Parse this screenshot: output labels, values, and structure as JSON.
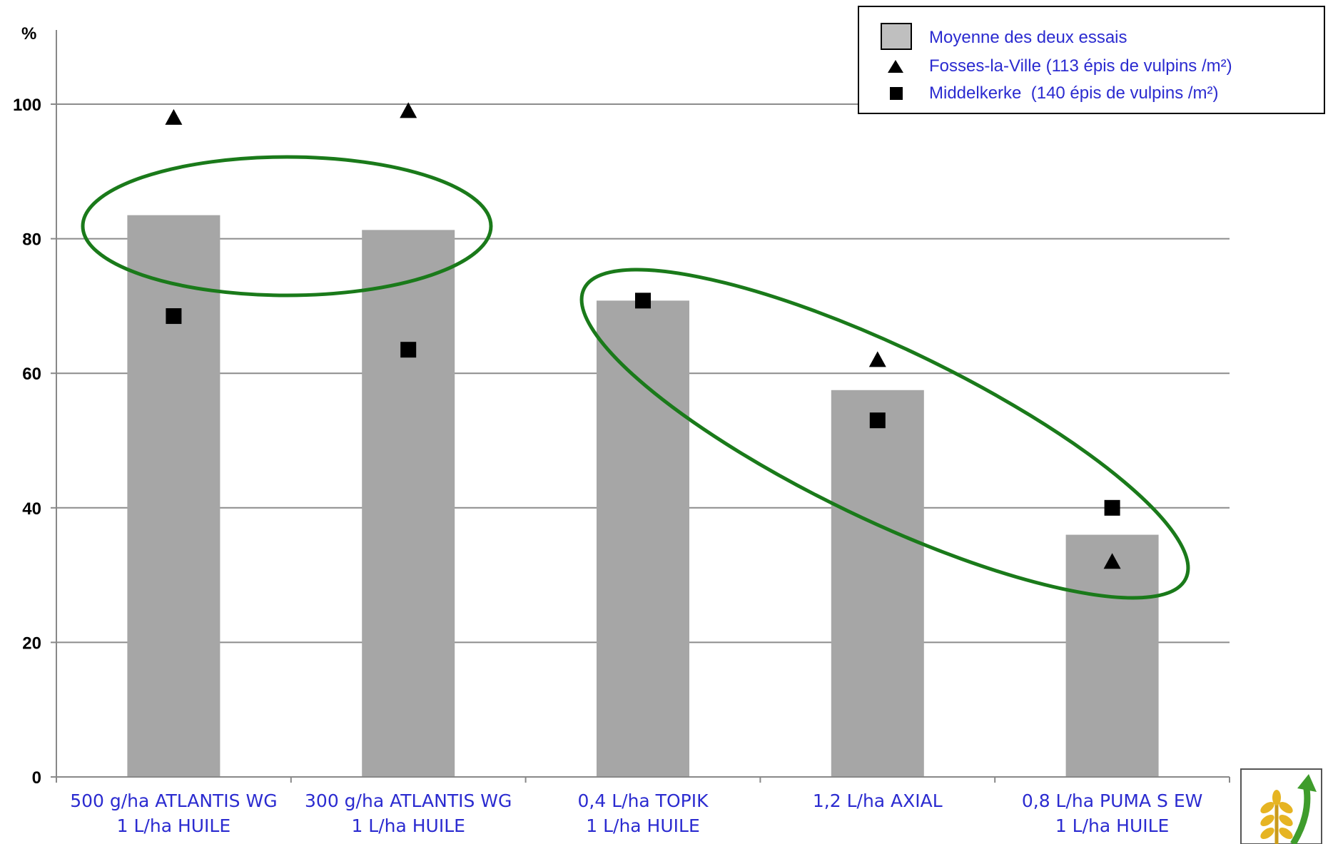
{
  "chart_data": {
    "type": "bar",
    "y_unit_label": "%",
    "ylim": [
      0,
      100
    ],
    "y_ticks": [
      {
        "value": 100,
        "label": "100"
      },
      {
        "value": 80,
        "label": "80"
      },
      {
        "value": 60,
        "label": "60"
      },
      {
        "value": 40,
        "label": "40"
      },
      {
        "value": 20,
        "label": "20"
      },
      {
        "value": 0,
        "label": "0"
      }
    ],
    "gridlines": [
      20,
      40,
      60,
      80,
      100
    ],
    "categories": [
      [
        "500 g/ha ATLANTIS WG",
        "1 L/ha HUILE"
      ],
      [
        "300 g/ha ATLANTIS WG",
        "1 L/ha HUILE"
      ],
      [
        "0,4 L/ha TOPIK",
        "1 L/ha HUILE"
      ],
      [
        "1,2 L/ha AXIAL"
      ],
      [
        "0,8 L/ha PUMA S EW",
        "1 L/ha HUILE"
      ]
    ],
    "series": [
      {
        "name": "Moyenne des deux essais",
        "kind": "bar",
        "color": "#a6a6a6",
        "values": [
          83.5,
          81.3,
          70.8,
          57.5,
          36
        ]
      },
      {
        "name": "Fosses-la-Ville (113 épis de vulpins /m²)",
        "kind": "triangle",
        "color": "#000000",
        "values": [
          98,
          99,
          null,
          62,
          32
        ]
      },
      {
        "name": "Middelkerke  (140 épis de vulpins /m²)",
        "kind": "square",
        "color": "#000000",
        "values": [
          68.5,
          63.5,
          70.8,
          53,
          40
        ]
      }
    ],
    "legend_position": "top-right",
    "annotation_color": "#1a7a1a"
  }
}
